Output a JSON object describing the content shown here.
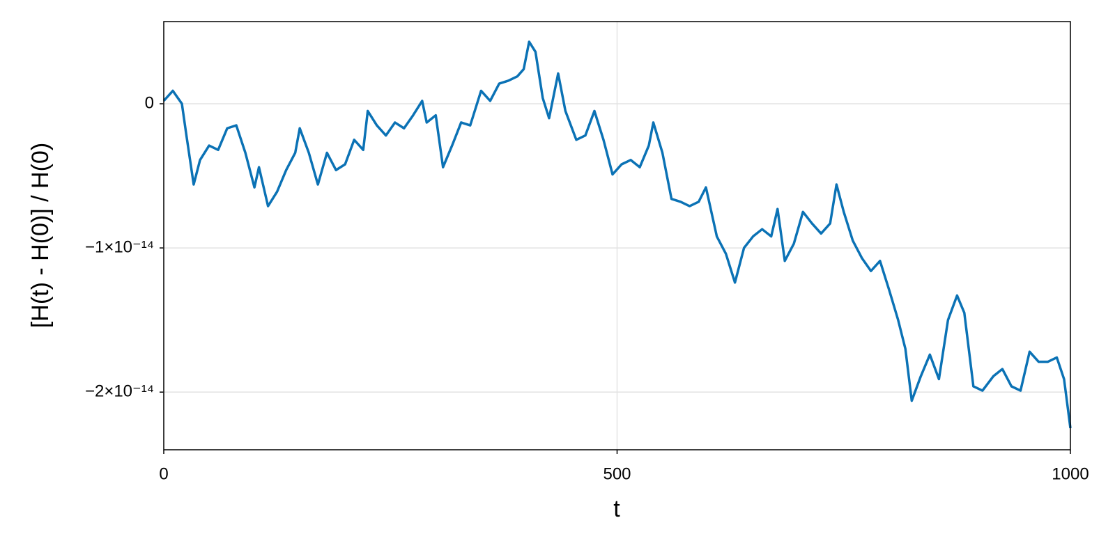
{
  "chart_data": {
    "type": "line",
    "xlabel": "t",
    "ylabel": "[H(t) - H(0)] / H(0)",
    "xlim": [
      0,
      1000
    ],
    "xticks": [
      0,
      500,
      1000
    ],
    "ylim": [
      -2.4e-14,
      5.7e-15
    ],
    "yticks": [
      {
        "value": 0,
        "label": "0"
      },
      {
        "value": -1e-14,
        "label": "−1×10⁻¹⁴"
      },
      {
        "value": -2e-14,
        "label": "−2×10⁻¹⁴"
      }
    ],
    "grid": true,
    "x": [
      0,
      10,
      20,
      25,
      33,
      40,
      50,
      60,
      70,
      80,
      90,
      100,
      105,
      115,
      125,
      135,
      145,
      150,
      160,
      170,
      180,
      190,
      200,
      210,
      220,
      225,
      235,
      245,
      255,
      265,
      275,
      285,
      290,
      300,
      308,
      318,
      328,
      338,
      350,
      360,
      370,
      380,
      390,
      397,
      403,
      410,
      418,
      425,
      435,
      443,
      455,
      465,
      475,
      485,
      495,
      505,
      515,
      525,
      535,
      540,
      550,
      560,
      570,
      580,
      590,
      598,
      610,
      620,
      630,
      640,
      650,
      660,
      670,
      677,
      685,
      695,
      705,
      715,
      725,
      735,
      742,
      750,
      760,
      770,
      780,
      790,
      800,
      810,
      818,
      825,
      835,
      845,
      855,
      865,
      875,
      883,
      893,
      903,
      915,
      925,
      935,
      945,
      955,
      965,
      975,
      985,
      993,
      1000
    ],
    "series": [
      {
        "color": "#0b72b5",
        "values": [
          2e-16,
          9e-16,
          0,
          -2.2e-15,
          -5.6e-15,
          -3.9e-15,
          -2.9e-15,
          -3.2e-15,
          -1.7e-15,
          -1.5e-15,
          -3.4e-15,
          -5.8e-15,
          -4.4e-15,
          -7.1e-15,
          -6.1e-15,
          -4.6e-15,
          -3.4e-15,
          -1.7e-15,
          -3.4e-15,
          -5.6e-15,
          -3.4e-15,
          -4.6e-15,
          -4.2e-15,
          -2.5e-15,
          -3.2e-15,
          -5e-16,
          -1.5e-15,
          -2.2e-15,
          -1.3e-15,
          -1.7e-15,
          -8e-16,
          2e-16,
          -1.3e-15,
          -8e-16,
          -4.4e-15,
          -2.9e-15,
          -1.3e-15,
          -1.5e-15,
          9e-16,
          2e-16,
          1.4e-15,
          1.6e-15,
          1.9e-15,
          2.4e-15,
          4.3e-15,
          3.6e-15,
          4e-16,
          -1e-15,
          2.1e-15,
          -5e-16,
          -2.5e-15,
          -2.2e-15,
          -5e-16,
          -2.5e-15,
          -4.9e-15,
          -4.2e-15,
          -3.9e-15,
          -4.4e-15,
          -2.9e-15,
          -1.3e-15,
          -3.4e-15,
          -6.6e-15,
          -6.8e-15,
          -7.1e-15,
          -6.8e-15,
          -5.8e-15,
          -9.2e-15,
          -1.04e-14,
          -1.24e-14,
          -1e-14,
          -9.2e-15,
          -8.7e-15,
          -9.2e-15,
          -7.3e-15,
          -1.09e-14,
          -9.7e-15,
          -7.5e-15,
          -8.3e-15,
          -9e-15,
          -8.3e-15,
          -5.6e-15,
          -7.5e-15,
          -9.5e-15,
          -1.07e-14,
          -1.16e-14,
          -1.09e-14,
          -1.29e-14,
          -1.5e-14,
          -1.7e-14,
          -2.06e-14,
          -1.89e-14,
          -1.74e-14,
          -1.91e-14,
          -1.5e-14,
          -1.33e-14,
          -1.45e-14,
          -1.96e-14,
          -1.99e-14,
          -1.89e-14,
          -1.84e-14,
          -1.96e-14,
          -1.99e-14,
          -1.72e-14,
          -1.79e-14,
          -1.79e-14,
          -1.76e-14,
          -1.91e-14,
          -2.25e-14
        ]
      }
    ]
  }
}
